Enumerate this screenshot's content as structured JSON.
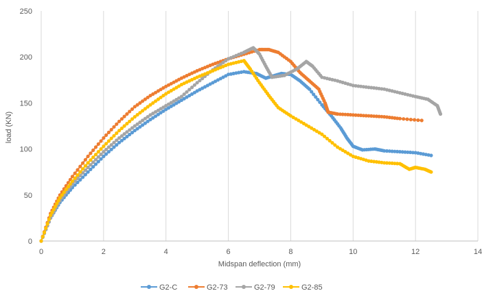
{
  "chart_data": {
    "type": "line",
    "title": "",
    "xlabel": "Midspan deflection (mm)",
    "ylabel": "load (KN)",
    "xlim": [
      0,
      14
    ],
    "ylim": [
      0,
      250
    ],
    "xticks": [
      0,
      2,
      4,
      6,
      8,
      10,
      12,
      14
    ],
    "yticks": [
      0,
      50,
      100,
      150,
      200,
      250
    ],
    "grid": "vertical",
    "legend": "bottom",
    "series": [
      {
        "name": "G2-C",
        "color": "#5B9BD5",
        "points": [
          [
            0,
            0
          ],
          [
            0.3,
            25
          ],
          [
            0.6,
            42
          ],
          [
            1,
            58
          ],
          [
            1.5,
            75
          ],
          [
            2,
            92
          ],
          [
            2.5,
            107
          ],
          [
            3,
            120
          ],
          [
            3.5,
            132
          ],
          [
            4,
            143
          ],
          [
            4.5,
            153
          ],
          [
            5,
            163
          ],
          [
            5.5,
            172
          ],
          [
            6,
            181
          ],
          [
            6.5,
            184
          ],
          [
            6.9,
            182
          ],
          [
            7.2,
            177
          ],
          [
            7.4,
            179
          ],
          [
            7.7,
            182
          ],
          [
            8.0,
            181
          ],
          [
            8.3,
            174
          ],
          [
            8.6,
            165
          ],
          [
            9.0,
            148
          ],
          [
            9.3,
            136
          ],
          [
            9.6,
            123
          ],
          [
            9.8,
            112
          ],
          [
            10.0,
            103
          ],
          [
            10.3,
            99
          ],
          [
            10.7,
            100
          ],
          [
            11.0,
            98
          ],
          [
            11.5,
            97
          ],
          [
            12.0,
            96
          ],
          [
            12.5,
            93
          ]
        ]
      },
      {
        "name": "G2-73",
        "color": "#ED7D31",
        "points": [
          [
            0,
            0
          ],
          [
            0.3,
            30
          ],
          [
            0.6,
            50
          ],
          [
            1,
            70
          ],
          [
            1.5,
            92
          ],
          [
            2,
            112
          ],
          [
            2.5,
            130
          ],
          [
            3,
            146
          ],
          [
            3.5,
            158
          ],
          [
            4,
            168
          ],
          [
            4.5,
            177
          ],
          [
            5,
            185
          ],
          [
            5.5,
            192
          ],
          [
            6,
            198
          ],
          [
            6.5,
            203
          ],
          [
            7.0,
            208
          ],
          [
            7.3,
            208
          ],
          [
            7.6,
            205
          ],
          [
            8.0,
            195
          ],
          [
            8.3,
            183
          ],
          [
            8.6,
            174
          ],
          [
            8.9,
            165
          ],
          [
            9.1,
            150
          ],
          [
            9.2,
            140
          ],
          [
            9.5,
            138
          ],
          [
            10.0,
            137
          ],
          [
            10.5,
            136
          ],
          [
            11.0,
            135
          ],
          [
            11.5,
            133
          ],
          [
            12.2,
            131
          ]
        ]
      },
      {
        "name": "G2-79",
        "color": "#A5A5A5",
        "points": [
          [
            0,
            0
          ],
          [
            0.3,
            25
          ],
          [
            0.6,
            44
          ],
          [
            1,
            62
          ],
          [
            1.5,
            80
          ],
          [
            2,
            97
          ],
          [
            2.5,
            112
          ],
          [
            3,
            125
          ],
          [
            3.5,
            137
          ],
          [
            4,
            147
          ],
          [
            4.5,
            157
          ],
          [
            5,
            172
          ],
          [
            5.5,
            186
          ],
          [
            6,
            198
          ],
          [
            6.5,
            205
          ],
          [
            6.8,
            210
          ],
          [
            7.0,
            203
          ],
          [
            7.2,
            190
          ],
          [
            7.4,
            178
          ],
          [
            7.8,
            180
          ],
          [
            8.2,
            187
          ],
          [
            8.5,
            195
          ],
          [
            8.7,
            190
          ],
          [
            9.0,
            178
          ],
          [
            9.5,
            174
          ],
          [
            10.0,
            169
          ],
          [
            10.5,
            167
          ],
          [
            11.0,
            165
          ],
          [
            11.5,
            161
          ],
          [
            12.0,
            157
          ],
          [
            12.4,
            154
          ],
          [
            12.7,
            147
          ],
          [
            12.8,
            138
          ]
        ]
      },
      {
        "name": "G2-85",
        "color": "#FFC000",
        "points": [
          [
            0,
            0
          ],
          [
            0.3,
            28
          ],
          [
            0.6,
            47
          ],
          [
            1,
            65
          ],
          [
            1.5,
            85
          ],
          [
            2,
            103
          ],
          [
            2.5,
            120
          ],
          [
            3,
            135
          ],
          [
            3.5,
            148
          ],
          [
            4,
            160
          ],
          [
            4.5,
            170
          ],
          [
            5,
            178
          ],
          [
            5.5,
            185
          ],
          [
            6,
            192
          ],
          [
            6.5,
            196
          ],
          [
            6.7,
            187
          ],
          [
            7.0,
            172
          ],
          [
            7.3,
            158
          ],
          [
            7.6,
            145
          ],
          [
            8.0,
            136
          ],
          [
            8.5,
            126
          ],
          [
            9.0,
            116
          ],
          [
            9.5,
            102
          ],
          [
            10.0,
            92
          ],
          [
            10.5,
            87
          ],
          [
            11.0,
            85
          ],
          [
            11.5,
            84
          ],
          [
            11.8,
            78
          ],
          [
            12.0,
            80
          ],
          [
            12.3,
            78
          ],
          [
            12.5,
            75
          ]
        ]
      }
    ]
  }
}
